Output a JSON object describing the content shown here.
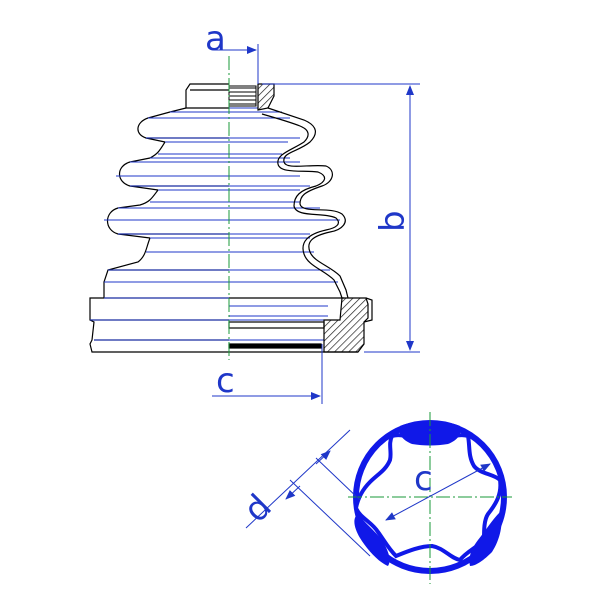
{
  "labels": {
    "a": "a",
    "b": "b",
    "c_top": "c",
    "c_bottom": "c",
    "d": "d"
  },
  "colors": {
    "outline": "#000000",
    "dimension": "#1f37c8",
    "fill_blue": "#1018e8",
    "hatch": "#222222",
    "centerline": "#1a9a3a",
    "background": "#ffffff"
  }
}
